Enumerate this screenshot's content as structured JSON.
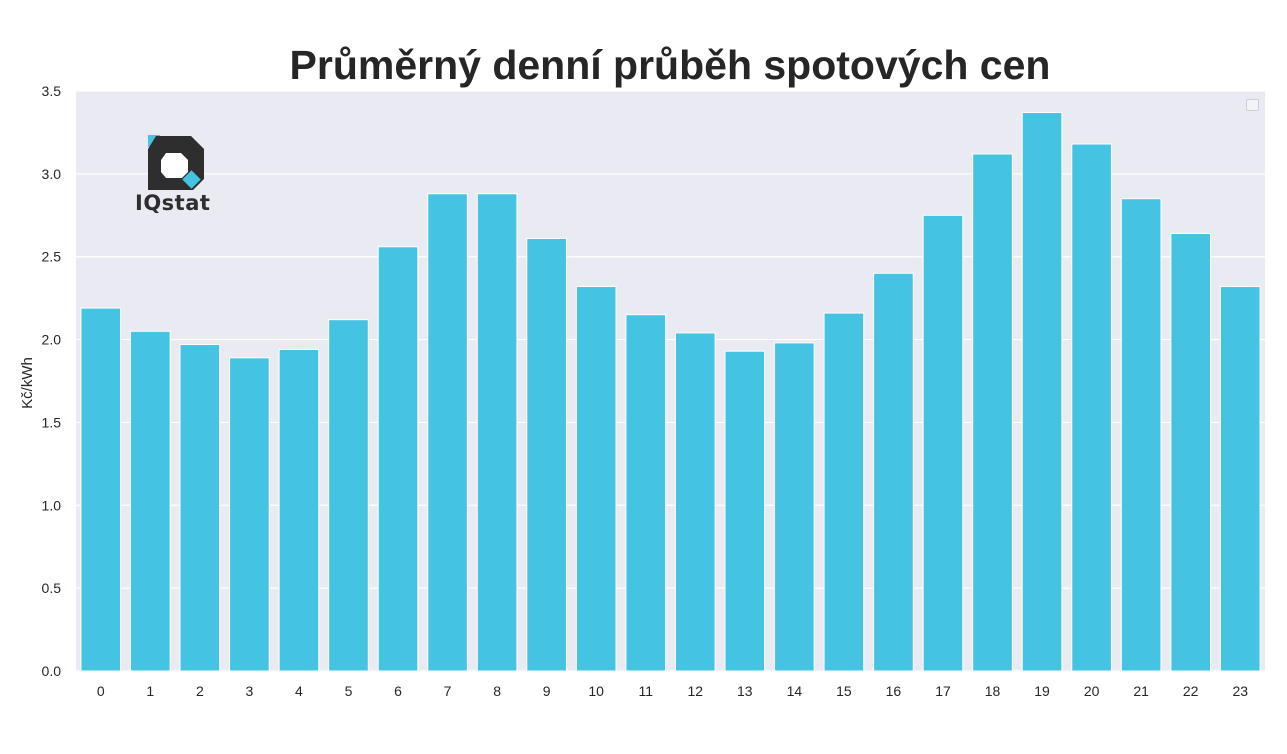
{
  "chart_data": {
    "type": "bar",
    "title": "Průměrný denní průběh spotových cen",
    "xlabel": "",
    "ylabel": "Kč/kWh",
    "categories": [
      "0",
      "1",
      "2",
      "3",
      "4",
      "5",
      "6",
      "7",
      "8",
      "9",
      "10",
      "11",
      "12",
      "13",
      "14",
      "15",
      "16",
      "17",
      "18",
      "19",
      "20",
      "21",
      "22",
      "23"
    ],
    "values": [
      2.19,
      2.05,
      1.97,
      1.89,
      1.94,
      2.12,
      2.56,
      2.88,
      2.88,
      2.61,
      2.32,
      2.15,
      2.04,
      1.93,
      1.98,
      2.16,
      2.4,
      2.75,
      3.12,
      3.37,
      3.18,
      2.85,
      2.64,
      2.32
    ],
    "ylim": [
      0,
      3.5
    ],
    "yticks": [
      "0.0",
      "0.5",
      "1.0",
      "1.5",
      "2.0",
      "2.5",
      "3.0",
      "3.5"
    ],
    "grid": true,
    "legend": "top-right (empty)",
    "colors": {
      "bar": "#44c4e2",
      "plot_background": "#eaeaf2",
      "grid": "#ffffff"
    }
  },
  "logo": {
    "text": "IQstat"
  }
}
